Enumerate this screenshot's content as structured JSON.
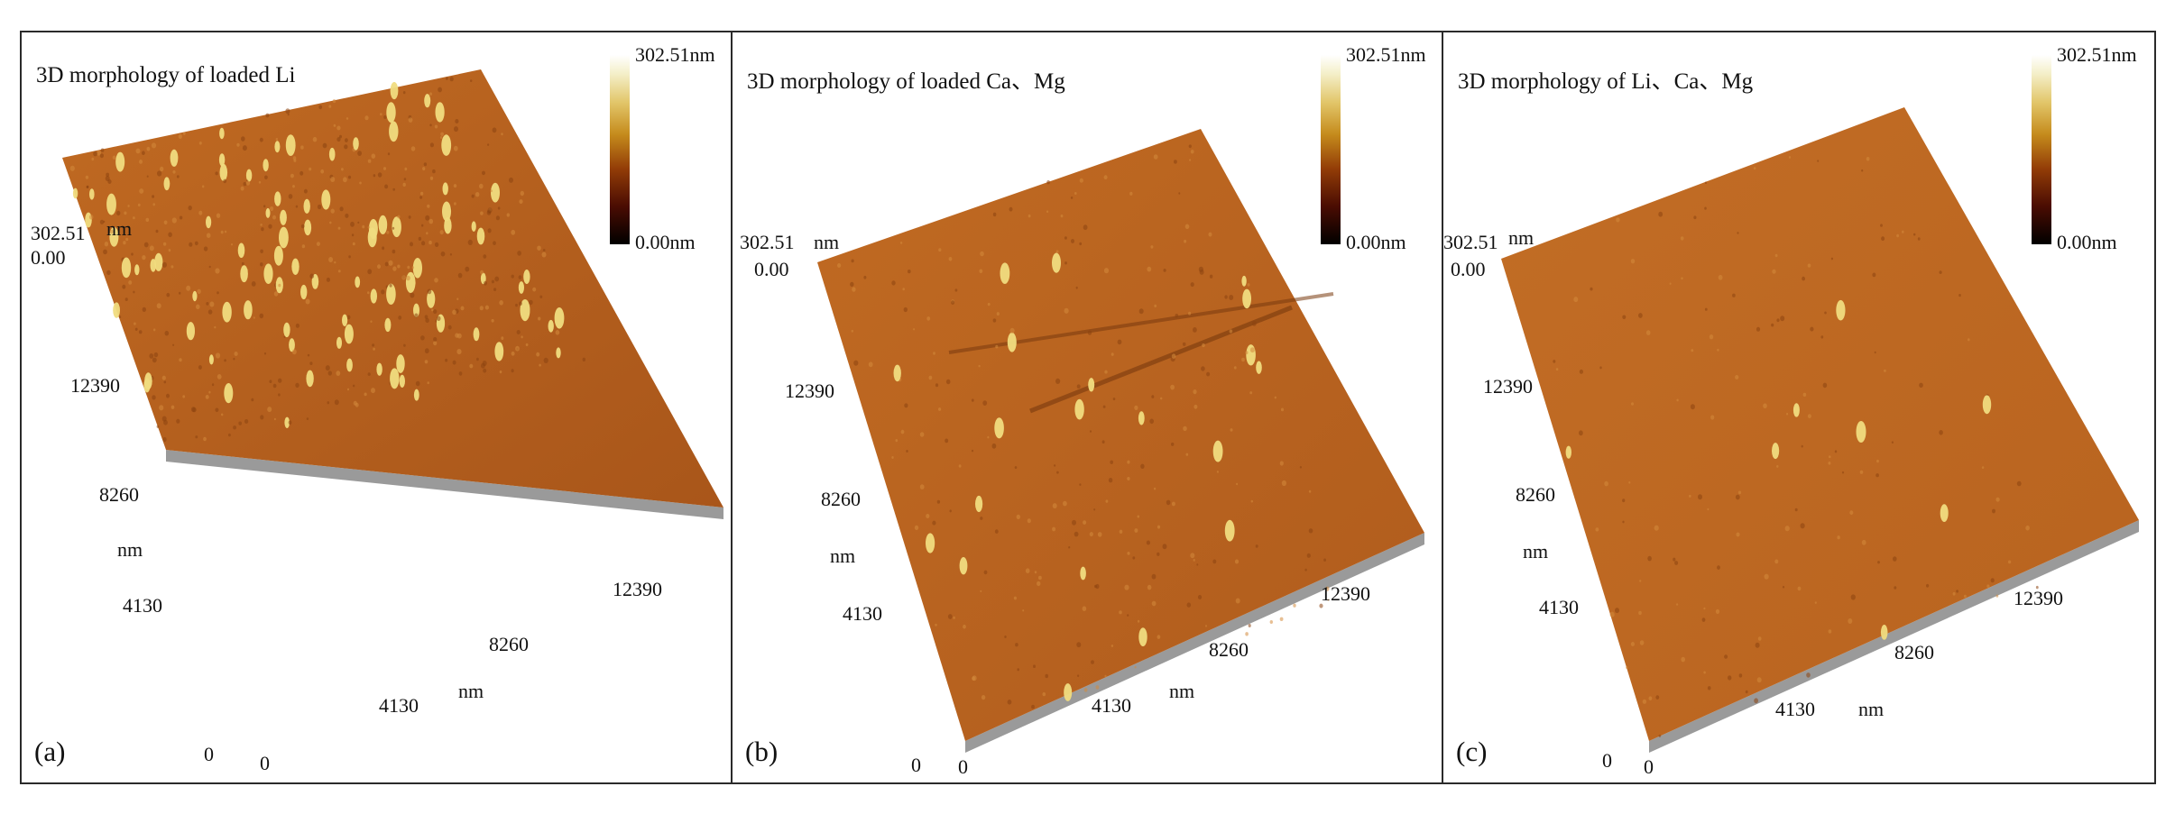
{
  "panels": [
    {
      "title": "3D morphology of loaded Li",
      "tag": "(a)",
      "colorbar": {
        "max": "302.51nm",
        "min": "0.00nm"
      },
      "z_axis": {
        "top": "302.51",
        "unit": "nm",
        "bottom": "0.00"
      },
      "y_axis": {
        "ticks": [
          "12390",
          "8260",
          "4130",
          "0"
        ],
        "unit": "nm"
      },
      "x_axis": {
        "ticks": [
          "0",
          "4130",
          "8260",
          "12390"
        ],
        "unit": "nm"
      },
      "roughness": "high"
    },
    {
      "title": "3D morphology of loaded Ca、Mg",
      "tag": "(b)",
      "colorbar": {
        "max": "302.51nm",
        "min": "0.00nm"
      },
      "z_axis": {
        "top": "302.51",
        "unit": "nm",
        "bottom": "0.00"
      },
      "y_axis": {
        "ticks": [
          "12390",
          "8260",
          "4130",
          "0"
        ],
        "unit": "nm"
      },
      "x_axis": {
        "ticks": [
          "0",
          "4130",
          "8260",
          "12390"
        ],
        "unit": "nm"
      },
      "roughness": "medium"
    },
    {
      "title": "3D morphology of  Li、Ca、Mg",
      "tag": "(c)",
      "colorbar": {
        "max": "302.51nm",
        "min": "0.00nm"
      },
      "z_axis": {
        "top": "302.51",
        "unit": "nm",
        "bottom": "0.00"
      },
      "y_axis": {
        "ticks": [
          "12390",
          "8260",
          "4130",
          "0"
        ],
        "unit": "nm"
      },
      "x_axis": {
        "ticks": [
          "0",
          "4130",
          "8260",
          "12390"
        ],
        "unit": "nm"
      },
      "roughness": "low"
    }
  ],
  "colors": {
    "surface": "#b8601c",
    "surface_dark": "#8c4310",
    "peak": "#f2e28a",
    "base": "#8f8f8f",
    "border": "#2a2a2a"
  }
}
